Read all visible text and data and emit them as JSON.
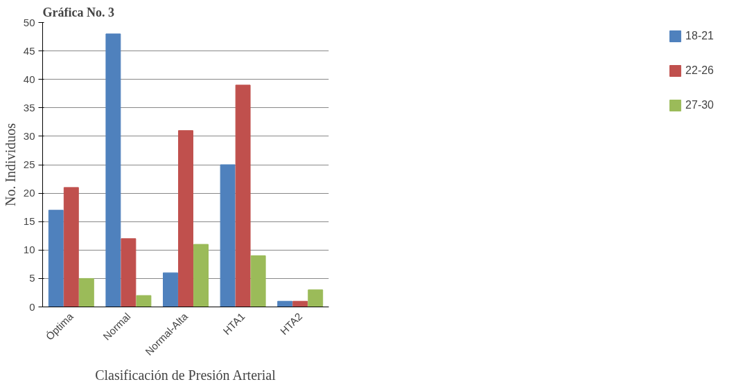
{
  "chart_data": {
    "type": "bar",
    "title": "Gráfica No. 3",
    "xlabel": "Clasificación de Presión Arterial",
    "ylabel": "No. Individuos",
    "categories": [
      "Óptima",
      "Normal",
      "Normal-Alta",
      "HTA1",
      "HTA2"
    ],
    "series": [
      {
        "name": "18-21",
        "color": "#4f81bd",
        "values": [
          17,
          48,
          6,
          25,
          1
        ]
      },
      {
        "name": "22-26",
        "color": "#c0504d",
        "values": [
          21,
          12,
          31,
          39,
          1
        ]
      },
      {
        "name": "27-30",
        "color": "#9bbb59",
        "values": [
          5,
          2,
          11,
          9,
          3
        ]
      }
    ],
    "ylim": [
      0,
      50
    ],
    "yticks": [
      0,
      5,
      10,
      15,
      20,
      25,
      30,
      35,
      40,
      45,
      50
    ],
    "grid": "y",
    "legend": "right"
  }
}
